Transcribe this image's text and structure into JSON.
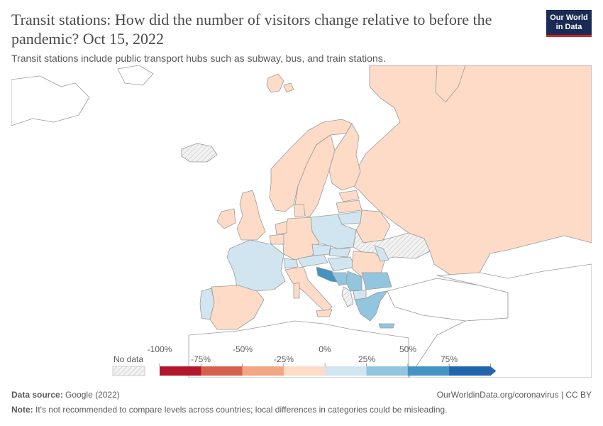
{
  "header": {
    "title": "Transit stations: How did the number of visitors change relative to before the pandemic? Oct 15, 2022",
    "subtitle": "Transit stations include public transport hubs such as subway, bus, and train stations."
  },
  "logo": {
    "line1": "Our World",
    "line2": "in Data"
  },
  "legend": {
    "no_data_label": "No data",
    "ticks_top": [
      "-100%",
      "-50%",
      "0%",
      "50%"
    ],
    "ticks_bottom": [
      "-75%",
      "-25%",
      "25%",
      "75%"
    ],
    "colors": [
      "#b2182b",
      "#d6604d",
      "#f4a582",
      "#fddbc7",
      "#d1e5f0",
      "#92c5de",
      "#4393c3",
      "#2166ac"
    ],
    "no_data_color": "#eeeeee"
  },
  "footer": {
    "source_label": "Data source:",
    "source_value": "Google (2022)",
    "url": "OurWorldinData.org/coronavirus | CC BY",
    "note_label": "Note:",
    "note_value": "It's not recommended to compare levels across countries; local differences in categories could be misleading."
  },
  "colors": {
    "land_other": "#ffffff",
    "border": "#a0a0a0"
  }
}
